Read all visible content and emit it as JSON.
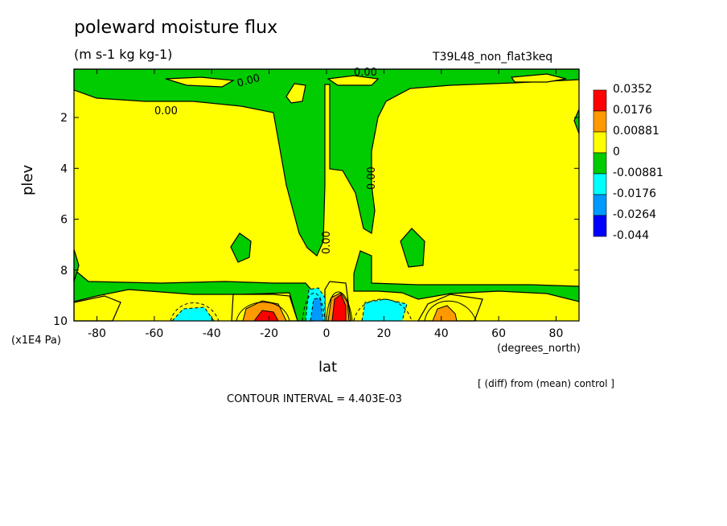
{
  "chart_data": {
    "type": "heatmap",
    "title": "poleward moisture flux",
    "subtitle": "(m s-1 kg kg-1)",
    "run_label": "T39L48_non_flat3keq",
    "xlabel": "lat",
    "x_units": "(degrees_north)",
    "ylabel": "plev",
    "y_units": "(x1E4 Pa)",
    "xlim": [
      -88,
      88
    ],
    "ylim": [
      10,
      0.1
    ],
    "x_ticks": [
      -80,
      -60,
      -40,
      -20,
      0,
      20,
      40,
      60,
      80
    ],
    "y_ticks": [
      2,
      4,
      6,
      8,
      10
    ],
    "contour_interval_text": "CONTOUR INTERVAL = 4.403E-03",
    "note": "[ (diff) from (mean) control ]",
    "contour_labels": [
      "0.00",
      "0.00",
      "0.00",
      "0.00",
      "0.00",
      "0.00"
    ],
    "legend": {
      "levels": [
        "0.0352",
        "0.0176",
        "0.00881",
        "0",
        "-0.00881",
        "-0.0176",
        "-0.0264",
        "-0.044"
      ],
      "colors": [
        "#ff0000",
        "#ff9900",
        "#ffff00",
        "#00cc00",
        "#00ffff",
        "#0099ff",
        "#0000ff"
      ]
    },
    "regions": [
      {
        "value_band": "0 to 0.00881",
        "color": "#ffff00",
        "description": "background positive"
      },
      {
        "value_band": "-0.00881 to 0",
        "color": "#00cc00",
        "description": "negative"
      },
      {
        "value_band": "0.00881 to 0.0176",
        "color": "#ff9900"
      },
      {
        "value_band": "0.0176 to 0.0352",
        "color": "#ff0000"
      },
      {
        "value_band": "-0.0176 to -0.00881",
        "color": "#00ffff"
      },
      {
        "value_band": "-0.0264 to -0.0176",
        "color": "#0099ff"
      }
    ]
  }
}
